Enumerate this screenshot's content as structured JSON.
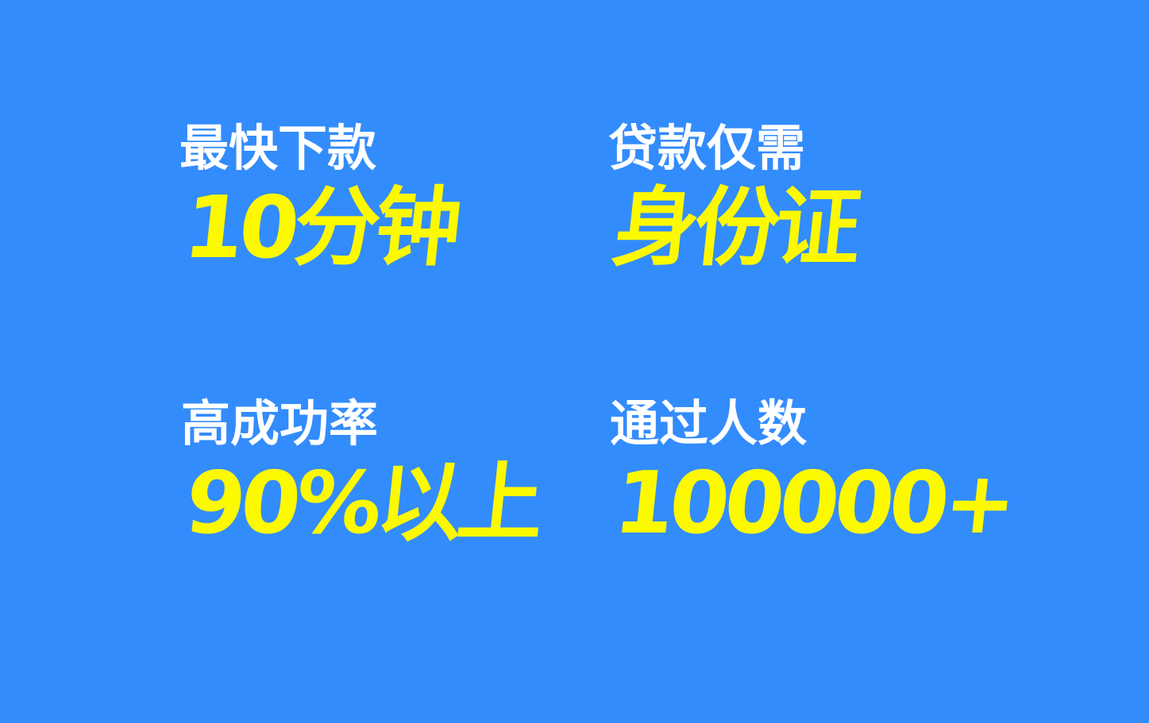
{
  "colors": {
    "background": "#338cfc",
    "label": "#ffffff",
    "value": "#fdf900"
  },
  "stats": [
    {
      "label": "最快下款",
      "value": "10分钟"
    },
    {
      "label": "贷款仅需",
      "value": "身份证"
    },
    {
      "label": "高成功率",
      "value": "90%以上"
    },
    {
      "label": "通过人数",
      "value": "100000+"
    }
  ]
}
